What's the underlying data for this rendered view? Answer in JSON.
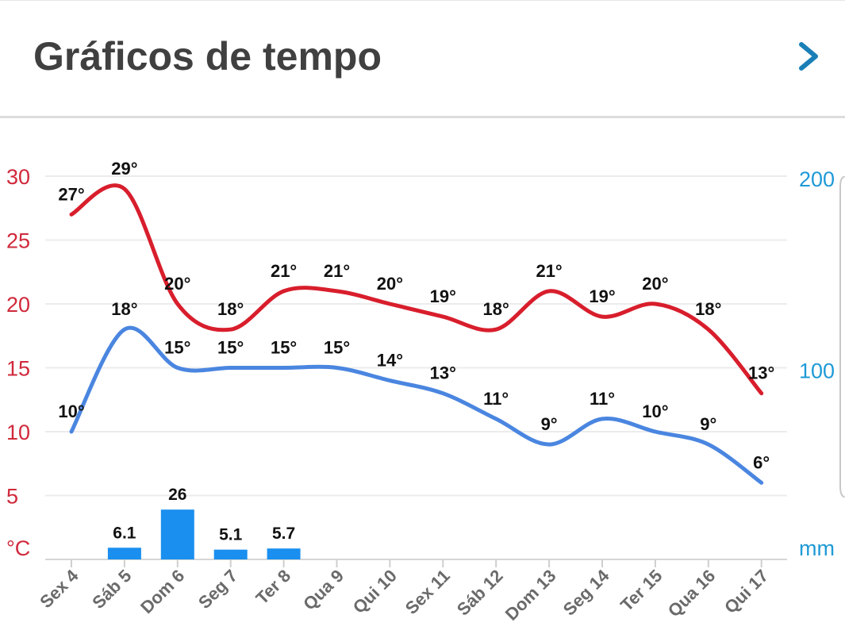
{
  "header": {
    "title": "Gráficos de tempo",
    "next_icon": "chevron-right-icon"
  },
  "colors": {
    "max_temp": "#d81e2c",
    "min_temp": "#4a86e0",
    "precip": "#1a8fef",
    "left_axis": "#d0293b",
    "right_axis": "#1e9ad6",
    "title": "#404040",
    "chevron": "#1a7fb7"
  },
  "chart_data": {
    "type": "line",
    "categories": [
      "Sex 4",
      "Sáb 5",
      "Dom 6",
      "Seg 7",
      "Ter 8",
      "Qua 9",
      "Qui 10",
      "Sex 11",
      "Sáb 12",
      "Dom 13",
      "Seg 14",
      "Ter 15",
      "Qua 16",
      "Qui 17"
    ],
    "series": [
      {
        "axis": "left",
        "kind": "line",
        "color": "#d81e2c",
        "values": [
          27,
          29,
          20,
          18,
          21,
          21,
          20,
          19,
          18,
          21,
          19,
          20,
          18,
          13
        ],
        "labels": [
          "27°",
          "29°",
          "20°",
          "18°",
          "21°",
          "21°",
          "20°",
          "19°",
          "18°",
          "21°",
          "19°",
          "20°",
          "18°",
          "13°"
        ]
      },
      {
        "axis": "left",
        "kind": "line",
        "color": "#4a86e0",
        "values": [
          10,
          18,
          15,
          15,
          15,
          15,
          14,
          13,
          11,
          9,
          11,
          10,
          9,
          6
        ],
        "labels": [
          "10°",
          "18°",
          "15°",
          "15°",
          "15°",
          "15°",
          "14°",
          "13°",
          "11°",
          "9°",
          "11°",
          "10°",
          "9°",
          "6°"
        ]
      },
      {
        "axis": "right",
        "kind": "bar",
        "color": "#1a8fef",
        "values": [
          null,
          6.1,
          26,
          5.1,
          5.7,
          null,
          null,
          null,
          null,
          null,
          null,
          null,
          null,
          null
        ],
        "labels": [
          "",
          "6.1",
          "26",
          "5.1",
          "5.7",
          "",
          "",
          "",
          "",
          "",
          "",
          "",
          "",
          ""
        ]
      }
    ],
    "y_left": {
      "unit": "°C",
      "ticks": [
        "30",
        "25",
        "20",
        "15",
        "10",
        "5"
      ],
      "ylim": [
        0,
        30
      ]
    },
    "y_right": {
      "unit": "mm",
      "ticks": [
        "200",
        "100"
      ],
      "ylim": [
        0,
        200
      ]
    },
    "grid": true
  }
}
